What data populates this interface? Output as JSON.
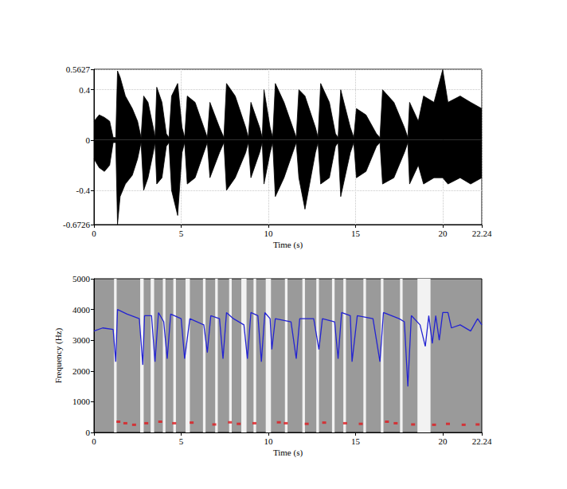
{
  "chart_data": [
    {
      "type": "area",
      "x_label": "Time (s)",
      "x": [
        0,
        0.3,
        0.6,
        0.9,
        1.1,
        1.25,
        1.35,
        1.5,
        1.8,
        2.2,
        2.5,
        2.7,
        2.85,
        3.1,
        3.4,
        3.5,
        3.6,
        3.9,
        4.15,
        4.3,
        4.45,
        4.8,
        5.05,
        5.2,
        5.35,
        5.8,
        6.3,
        6.5,
        6.65,
        7.2,
        7.45,
        7.6,
        8.1,
        8.7,
        8.85,
        9.0,
        9.5,
        9.65,
        9.75,
        10.1,
        10.25,
        10.4,
        10.9,
        11.4,
        11.6,
        11.75,
        12.1,
        12.7,
        12.85,
        13.0,
        13.5,
        13.85,
        14.0,
        14.15,
        14.7,
        14.9,
        15.05,
        15.6,
        16.2,
        16.4,
        16.55,
        17.2,
        17.8,
        18.0,
        18.1,
        18.6,
        18.9,
        19.5,
        20.0,
        20.3,
        21.0,
        21.6,
        22.24
      ],
      "series": [
        {
          "color": "#000000",
          "values": [
            0.15,
            0.2,
            0.18,
            0.15,
            0.02,
            0.02,
            0.55,
            0.5,
            0.35,
            0.25,
            0.15,
            0.02,
            0.35,
            0.3,
            0.1,
            0.02,
            0.42,
            0.3,
            0.05,
            0.02,
            0.35,
            0.45,
            0.1,
            0.02,
            0.35,
            0.3,
            0.1,
            0.02,
            0.3,
            0.1,
            0.02,
            0.45,
            0.35,
            0.1,
            0.02,
            0.3,
            0.1,
            0.02,
            0.4,
            0.1,
            0.02,
            0.45,
            0.3,
            0.1,
            0.02,
            0.4,
            0.35,
            0.1,
            0.02,
            0.45,
            0.3,
            0.05,
            0.02,
            0.4,
            0.1,
            0.02,
            0.25,
            0.2,
            0.05,
            0.02,
            0.4,
            0.3,
            0.1,
            0.02,
            0.3,
            0.15,
            0.35,
            0.3,
            0.56,
            0.3,
            0.35,
            0.3,
            0.25
          ]
        },
        {
          "color": "#000000",
          "values": [
            -0.15,
            -0.22,
            -0.25,
            -0.2,
            -0.02,
            -0.02,
            -0.67,
            -0.45,
            -0.35,
            -0.28,
            -0.15,
            -0.02,
            -0.4,
            -0.3,
            -0.1,
            -0.02,
            -0.35,
            -0.3,
            -0.05,
            -0.02,
            -0.4,
            -0.6,
            -0.1,
            -0.02,
            -0.35,
            -0.3,
            -0.1,
            -0.02,
            -0.3,
            -0.1,
            -0.02,
            -0.4,
            -0.3,
            -0.1,
            -0.02,
            -0.3,
            -0.1,
            -0.02,
            -0.35,
            -0.1,
            -0.02,
            -0.45,
            -0.3,
            -0.1,
            -0.02,
            -0.3,
            -0.55,
            -0.1,
            -0.02,
            -0.35,
            -0.3,
            -0.05,
            -0.02,
            -0.45,
            -0.1,
            -0.02,
            -0.3,
            -0.25,
            -0.05,
            -0.02,
            -0.35,
            -0.3,
            -0.1,
            -0.02,
            -0.35,
            -0.2,
            -0.35,
            -0.3,
            -0.3,
            -0.35,
            -0.3,
            -0.35,
            -0.3
          ]
        }
      ],
      "xlim": [
        0,
        22.24
      ],
      "xticks": [
        0,
        5,
        10,
        15,
        20,
        22.24
      ],
      "ylim": [
        -0.6726,
        0.5627
      ],
      "yticks": [
        -0.6726,
        -0.4,
        0,
        0.4,
        0.5627
      ],
      "grid": true
    },
    {
      "type": "line",
      "x_label": "Time (s)",
      "y_label": "Frequency (Hz)",
      "series": [
        {
          "type": "line",
          "color": "#2323d2",
          "x": [
            0,
            0.5,
            1.1,
            1.25,
            1.35,
            1.9,
            2.6,
            2.8,
            2.9,
            3.3,
            3.5,
            3.7,
            4.0,
            4.2,
            4.4,
            5.0,
            5.2,
            5.5,
            6.3,
            6.5,
            6.7,
            7.2,
            7.4,
            7.6,
            8.0,
            8.6,
            8.8,
            9.0,
            9.4,
            9.6,
            9.8,
            10.1,
            10.2,
            10.4,
            11.3,
            11.6,
            11.8,
            12.6,
            12.9,
            13.1,
            13.8,
            14.0,
            14.2,
            14.7,
            14.8,
            15.1,
            16.0,
            16.4,
            16.6,
            17.5,
            17.8,
            18.0,
            18.2,
            18.7,
            19.0,
            19.2,
            19.4,
            19.6,
            19.8,
            20.0,
            20.3,
            20.5,
            21.0,
            21.6,
            22.0,
            22.24
          ],
          "values": [
            3300,
            3400,
            3350,
            2300,
            4000,
            3850,
            3700,
            2200,
            3800,
            3800,
            2300,
            3900,
            3600,
            2400,
            3850,
            3700,
            2400,
            3700,
            3500,
            2600,
            3800,
            3700,
            2400,
            3900,
            3700,
            3500,
            2400,
            3900,
            3800,
            2300,
            3900,
            3700,
            2700,
            3700,
            3600,
            2400,
            3700,
            3700,
            2700,
            3700,
            3600,
            2400,
            3900,
            3800,
            2300,
            3800,
            3700,
            2300,
            3900,
            3700,
            3600,
            1500,
            3800,
            3500,
            2800,
            3800,
            2900,
            3800,
            3000,
            3900,
            3900,
            3400,
            3500,
            3300,
            3700,
            3500
          ]
        },
        {
          "type": "scatter",
          "color": "#e0191e",
          "x": [
            1.4,
            1.8,
            2.3,
            3.0,
            3.8,
            4.6,
            5.6,
            6.9,
            7.8,
            8.3,
            9.2,
            10.6,
            11.0,
            12.2,
            13.2,
            14.4,
            15.3,
            16.8,
            17.3,
            18.3,
            19.5,
            20.3,
            21.2,
            22.0
          ],
          "values": [
            350,
            300,
            250,
            300,
            350,
            300,
            320,
            260,
            330,
            280,
            300,
            330,
            300,
            280,
            320,
            300,
            280,
            350,
            300,
            260,
            250,
            280,
            250,
            260
          ]
        }
      ],
      "pauses": [
        [
          1.15,
          1.3
        ],
        [
          2.65,
          2.85
        ],
        [
          3.25,
          3.45
        ],
        [
          3.95,
          4.1
        ],
        [
          4.55,
          4.7
        ],
        [
          5.25,
          5.5
        ],
        [
          6.25,
          6.4
        ],
        [
          6.95,
          7.1
        ],
        [
          7.75,
          7.9
        ],
        [
          8.45,
          8.75
        ],
        [
          9.15,
          9.3
        ],
        [
          9.85,
          10.15
        ],
        [
          10.95,
          11.1
        ],
        [
          11.95,
          12.1
        ],
        [
          12.75,
          12.9
        ],
        [
          13.65,
          13.8
        ],
        [
          14.3,
          14.45
        ],
        [
          15.45,
          15.6
        ],
        [
          16.45,
          16.6
        ],
        [
          17.55,
          17.7
        ],
        [
          18.55,
          19.3
        ]
      ],
      "xlim": [
        0,
        22.24
      ],
      "xticks": [
        0,
        5,
        10,
        15,
        20,
        22.24
      ],
      "ylim": [
        0,
        5000
      ],
      "yticks": [
        0,
        1000,
        2000,
        3000,
        4000,
        5000
      ],
      "grid": false
    }
  ]
}
